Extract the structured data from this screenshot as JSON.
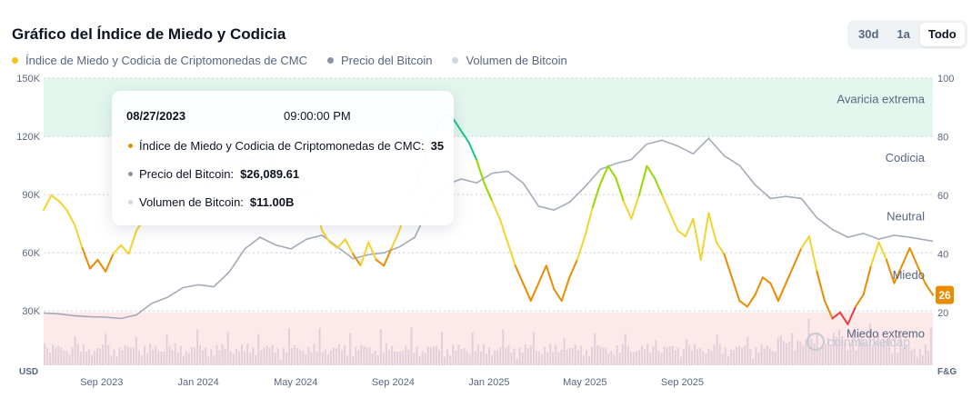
{
  "title": "Gráfico del Índice de Miedo y Codicia",
  "range_buttons": [
    {
      "label": "30d",
      "active": false
    },
    {
      "label": "1a",
      "active": false
    },
    {
      "label": "Todo",
      "active": true
    }
  ],
  "legend": [
    {
      "label": "Índice de Miedo y Codicia de Criptomonedas de CMC",
      "color": "#f0c419"
    },
    {
      "label": "Precio del Bitcoin",
      "color": "#8a94a6"
    },
    {
      "label": "Volumen de Bitcoin",
      "color": "#cfd6e4"
    }
  ],
  "tooltip": {
    "date": "08/27/2023",
    "time": "09:00:00 PM",
    "fg_label": "Índice de Miedo y Codicia de Criptomonedas de CMC:",
    "fg_value": "35",
    "price_label": "Precio del Bitcoin:",
    "price_value": "$26,089.61",
    "volume_label": "Volumen de Bitcoin:",
    "volume_value": "$11.00B"
  },
  "chart_data": {
    "type": "line",
    "left_axis": {
      "unit_label": "USD",
      "ticks": [
        "150K",
        "120K",
        "90K",
        "60K",
        "30K"
      ],
      "values": [
        150000,
        120000,
        90000,
        60000,
        30000
      ],
      "ylim": [
        2000,
        150000
      ]
    },
    "right_axis": {
      "unit_label": "F&G",
      "ticks": [
        "100",
        "80",
        "60",
        "40",
        "20"
      ],
      "values": [
        100,
        80,
        60,
        40,
        20
      ],
      "ylim": [
        2,
        100
      ]
    },
    "x_ticks": [
      {
        "label": "Sep 2023",
        "t": 0.075
      },
      {
        "label": "Jan 2024",
        "t": 0.2
      },
      {
        "label": "May 2024",
        "t": 0.326
      },
      {
        "label": "Sep 2024",
        "t": 0.452
      },
      {
        "label": "Jan 2025",
        "t": 0.576
      },
      {
        "label": "May 2025",
        "t": 0.7
      },
      {
        "label": "Sep 2025",
        "t": 0.826
      }
    ],
    "zones": [
      {
        "label": "Avaricia extrema",
        "from": 80,
        "to": 100,
        "color": "#e3f7ee"
      },
      {
        "label": "Codicia",
        "from": 60,
        "to": 80,
        "color": null
      },
      {
        "label": "Neutral",
        "from": 40,
        "to": 60,
        "color": null
      },
      {
        "label": "Miedo",
        "from": 20,
        "to": 40,
        "color": null
      },
      {
        "label": "Miedo extremo",
        "from": 0,
        "to": 20,
        "color": "#fde8ea"
      }
    ],
    "zone_label_values": [
      93,
      73,
      53,
      33,
      13
    ],
    "current_value": "26",
    "current_color": "#ea8c00",
    "series": [
      {
        "name": "Índice de Miedo y Codicia de Criptomonedas de CMC",
        "points": [
          [
            0,
            55
          ],
          [
            0.01,
            60
          ],
          [
            0.02,
            58
          ],
          [
            0.03,
            55
          ],
          [
            0.04,
            50
          ],
          [
            0.05,
            42
          ],
          [
            0.06,
            35
          ],
          [
            0.07,
            38
          ],
          [
            0.08,
            34
          ],
          [
            0.09,
            40
          ],
          [
            0.1,
            43
          ],
          [
            0.11,
            40
          ],
          [
            0.12,
            48
          ],
          [
            0.13,
            52
          ],
          [
            0.14,
            55
          ],
          [
            0.15,
            62
          ],
          [
            0.16,
            66
          ],
          [
            0.17,
            62
          ],
          [
            0.18,
            65
          ],
          [
            0.19,
            70
          ],
          [
            0.2,
            66
          ],
          [
            0.21,
            64
          ],
          [
            0.22,
            68
          ],
          [
            0.23,
            70
          ],
          [
            0.24,
            72
          ],
          [
            0.25,
            68
          ],
          [
            0.26,
            74
          ],
          [
            0.27,
            72
          ],
          [
            0.28,
            78
          ],
          [
            0.29,
            74
          ],
          [
            0.3,
            70
          ],
          [
            0.31,
            68
          ],
          [
            0.32,
            66
          ],
          [
            0.33,
            60
          ],
          [
            0.34,
            62
          ],
          [
            0.35,
            58
          ],
          [
            0.36,
            48
          ],
          [
            0.37,
            44
          ],
          [
            0.38,
            42
          ],
          [
            0.39,
            45
          ],
          [
            0.4,
            40
          ],
          [
            0.41,
            36
          ],
          [
            0.42,
            44
          ],
          [
            0.43,
            38
          ],
          [
            0.44,
            36
          ],
          [
            0.45,
            42
          ],
          [
            0.46,
            48
          ],
          [
            0.47,
            56
          ],
          [
            0.48,
            62
          ],
          [
            0.49,
            70
          ],
          [
            0.5,
            78
          ],
          [
            0.51,
            84
          ],
          [
            0.52,
            88
          ],
          [
            0.53,
            86
          ],
          [
            0.54,
            82
          ],
          [
            0.55,
            78
          ],
          [
            0.56,
            72
          ],
          [
            0.57,
            64
          ],
          [
            0.58,
            58
          ],
          [
            0.59,
            52
          ],
          [
            0.6,
            44
          ],
          [
            0.61,
            36
          ],
          [
            0.62,
            30
          ],
          [
            0.63,
            24
          ],
          [
            0.64,
            30
          ],
          [
            0.65,
            36
          ],
          [
            0.66,
            28
          ],
          [
            0.67,
            24
          ],
          [
            0.68,
            32
          ],
          [
            0.69,
            38
          ],
          [
            0.7,
            46
          ],
          [
            0.71,
            56
          ],
          [
            0.72,
            64
          ],
          [
            0.73,
            70
          ],
          [
            0.74,
            66
          ],
          [
            0.75,
            58
          ],
          [
            0.76,
            52
          ],
          [
            0.77,
            60
          ],
          [
            0.78,
            70
          ],
          [
            0.79,
            66
          ],
          [
            0.8,
            60
          ],
          [
            0.81,
            54
          ],
          [
            0.82,
            48
          ],
          [
            0.83,
            46
          ],
          [
            0.84,
            52
          ],
          [
            0.85,
            38
          ],
          [
            0.86,
            54
          ],
          [
            0.87,
            44
          ],
          [
            0.88,
            40
          ],
          [
            0.89,
            32
          ],
          [
            0.9,
            24
          ],
          [
            0.91,
            22
          ],
          [
            0.92,
            26
          ],
          [
            0.93,
            32
          ],
          [
            0.94,
            30
          ],
          [
            0.95,
            24
          ],
          [
            0.96,
            30
          ],
          [
            0.97,
            36
          ],
          [
            0.98,
            42
          ],
          [
            0.99,
            46
          ],
          [
            1.0,
            34
          ],
          [
            1.01,
            24
          ],
          [
            1.02,
            18
          ],
          [
            1.03,
            20
          ],
          [
            1.04,
            16
          ],
          [
            1.05,
            22
          ],
          [
            1.06,
            26
          ],
          [
            1.07,
            36
          ],
          [
            1.08,
            44
          ],
          [
            1.09,
            38
          ],
          [
            1.1,
            30
          ],
          [
            1.12,
            42
          ],
          [
            1.14,
            30
          ],
          [
            1.15,
            26
          ]
        ]
      },
      {
        "name": "Precio del Bitcoin",
        "points": [
          [
            0,
            29000
          ],
          [
            0.02,
            28500
          ],
          [
            0.04,
            27500
          ],
          [
            0.06,
            27000
          ],
          [
            0.08,
            26800
          ],
          [
            0.1,
            26100
          ],
          [
            0.12,
            28000
          ],
          [
            0.14,
            34000
          ],
          [
            0.16,
            37000
          ],
          [
            0.18,
            42000
          ],
          [
            0.2,
            43500
          ],
          [
            0.22,
            42500
          ],
          [
            0.24,
            50000
          ],
          [
            0.26,
            62000
          ],
          [
            0.28,
            68000
          ],
          [
            0.3,
            64000
          ],
          [
            0.32,
            62000
          ],
          [
            0.34,
            67000
          ],
          [
            0.36,
            69000
          ],
          [
            0.38,
            63000
          ],
          [
            0.4,
            57000
          ],
          [
            0.42,
            59000
          ],
          [
            0.44,
            60000
          ],
          [
            0.46,
            63000
          ],
          [
            0.48,
            68000
          ],
          [
            0.5,
            85000
          ],
          [
            0.52,
            95000
          ],
          [
            0.54,
            98000
          ],
          [
            0.56,
            96000
          ],
          [
            0.58,
            101000
          ],
          [
            0.6,
            102000
          ],
          [
            0.62,
            96000
          ],
          [
            0.64,
            84000
          ],
          [
            0.66,
            82000
          ],
          [
            0.68,
            86000
          ],
          [
            0.7,
            94000
          ],
          [
            0.72,
            103000
          ],
          [
            0.74,
            106000
          ],
          [
            0.76,
            108000
          ],
          [
            0.78,
            116000
          ],
          [
            0.8,
            118000
          ],
          [
            0.82,
            115000
          ],
          [
            0.84,
            111000
          ],
          [
            0.86,
            119000
          ],
          [
            0.88,
            110000
          ],
          [
            0.9,
            105000
          ],
          [
            0.92,
            95000
          ],
          [
            0.94,
            88000
          ],
          [
            0.96,
            89000
          ],
          [
            0.98,
            88000
          ],
          [
            1.0,
            78000
          ],
          [
            1.02,
            72000
          ],
          [
            1.04,
            68000
          ],
          [
            1.06,
            70000
          ],
          [
            1.08,
            67000
          ],
          [
            1.1,
            69000
          ],
          [
            1.12,
            68000
          ],
          [
            1.15,
            66000
          ]
        ]
      }
    ]
  },
  "watermark": "coinmarketcap"
}
